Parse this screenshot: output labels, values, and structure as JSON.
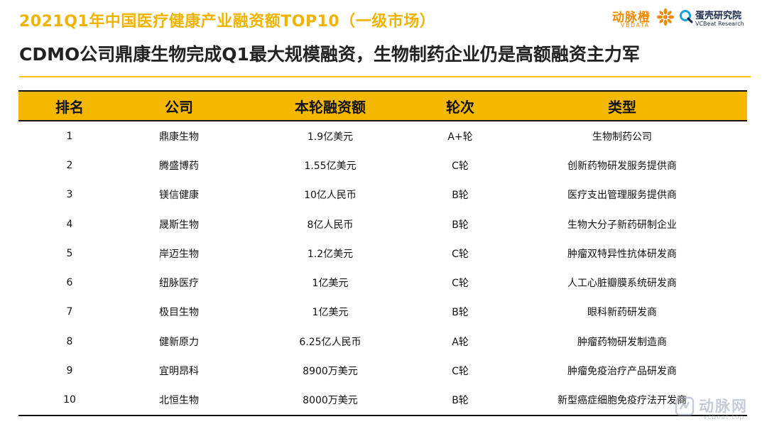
{
  "header": {
    "title": "2021Q1年中国医疗健康产业融资额TOP10（一级市场）",
    "subtitle": "CDMO公司鼎康生物完成Q1最大规模融资，生物制药企业仍是高额融资主力军"
  },
  "logos": {
    "vbdata": {
      "cn": "动脉橙",
      "en": "VBDATA",
      "icon": "vbdata-flower-icon",
      "color": "#f08a00"
    },
    "vcbeat": {
      "cn": "蛋壳研究院",
      "en": "VCBeat Research",
      "icon": "vcbeat-q-icon",
      "color": "#1a2a4a"
    }
  },
  "watermark": {
    "cn": "动脉网",
    "en": "vcbeat.top",
    "icon": "vcbeat-watermark-icon"
  },
  "table": {
    "columns": [
      "排名",
      "公司",
      "本轮融资额",
      "轮次",
      "类型"
    ],
    "rows": [
      [
        "1",
        "鼎康生物",
        "1.9亿美元",
        "A+轮",
        "生物制药公司"
      ],
      [
        "2",
        "腾盛博药",
        "1.55亿美元",
        "C轮",
        "创新药物研发服务提供商"
      ],
      [
        "3",
        "镁信健康",
        "10亿人民币",
        "B轮",
        "医疗支出管理服务提供商"
      ],
      [
        "4",
        "晟斯生物",
        "8亿人民币",
        "B轮",
        "生物大分子新药研制企业"
      ],
      [
        "5",
        "岸迈生物",
        "1.2亿美元",
        "C轮",
        "肿瘤双特异性抗体研发商"
      ],
      [
        "6",
        "纽脉医疗",
        "1亿美元",
        "C轮",
        "人工心脏瓣膜系统研发商"
      ],
      [
        "7",
        "极目生物",
        "1亿美元",
        "B轮",
        "眼科新药研发商"
      ],
      [
        "8",
        "健新原力",
        "6.25亿人民币",
        "A轮",
        "肿瘤药物研发制造商"
      ],
      [
        "9",
        "宜明昂科",
        "8900万美元",
        "C轮",
        "肿瘤免疫治疗产品研发商"
      ],
      [
        "10",
        "北恒生物",
        "8000万美元",
        "B轮",
        "新型癌症细胞免疫疗法开发商"
      ]
    ]
  },
  "colors": {
    "accent": "#f5b800",
    "title": "#f0b400",
    "text": "#111111"
  }
}
